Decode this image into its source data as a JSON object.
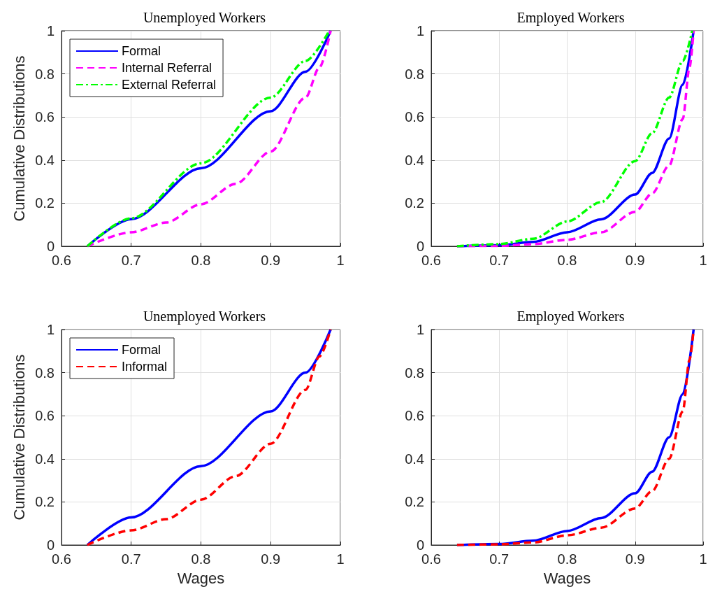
{
  "chart_data": [
    {
      "type": "line",
      "title": "Unemployed Workers",
      "ylabel": "Cumulative Distributions",
      "xlim": [
        0.6,
        1
      ],
      "xticks": [
        0.6,
        0.7,
        0.8,
        0.9,
        1
      ],
      "ylim": [
        0,
        1
      ],
      "yticks": [
        0,
        0.2,
        0.4,
        0.6,
        0.8,
        1
      ],
      "grid": true,
      "legend": "top left",
      "series": [
        {
          "name": "Formal",
          "color": "#0000ff",
          "line_style": "solid",
          "x": [
            0.637,
            0.7,
            0.8,
            0.9,
            0.95,
            0.986
          ],
          "values": [
            0,
            0.126,
            0.362,
            0.627,
            0.81,
            1
          ]
        },
        {
          "name": "Internal Referral",
          "color": "#ff00ff",
          "line_style": "dashed",
          "x": [
            0.637,
            0.7,
            0.75,
            0.8,
            0.85,
            0.9,
            0.95,
            0.97,
            0.986
          ],
          "values": [
            0,
            0.065,
            0.11,
            0.195,
            0.29,
            0.44,
            0.69,
            0.83,
            1
          ]
        },
        {
          "name": "External Referral",
          "color": "#00ff00",
          "line_style": "dashdot",
          "x": [
            0.637,
            0.7,
            0.8,
            0.9,
            0.95,
            0.984
          ],
          "values": [
            0,
            0.13,
            0.385,
            0.69,
            0.86,
            1
          ]
        }
      ]
    },
    {
      "type": "line",
      "title": "Employed Workers",
      "xlim": [
        0.6,
        1
      ],
      "xticks": [
        0.6,
        0.7,
        0.8,
        0.9,
        1
      ],
      "ylim": [
        0,
        1
      ],
      "yticks": [
        0,
        0.2,
        0.4,
        0.6,
        0.8,
        1
      ],
      "grid": true,
      "series": [
        {
          "color": "#0000ff",
          "line_style": "solid",
          "x": [
            0.638,
            0.7,
            0.75,
            0.8,
            0.85,
            0.9,
            0.925,
            0.95,
            0.97,
            0.986
          ],
          "values": [
            0,
            0.005,
            0.02,
            0.065,
            0.125,
            0.24,
            0.34,
            0.5,
            0.75,
            1
          ]
        },
        {
          "color": "#ff00ff",
          "line_style": "dashed",
          "x": [
            0.638,
            0.7,
            0.75,
            0.8,
            0.85,
            0.9,
            0.925,
            0.95,
            0.97,
            0.98,
            0.986
          ],
          "values": [
            0,
            0.002,
            0.01,
            0.03,
            0.065,
            0.16,
            0.245,
            0.375,
            0.59,
            0.83,
            1
          ]
        },
        {
          "color": "#00ff00",
          "line_style": "dashdot",
          "x": [
            0.638,
            0.7,
            0.75,
            0.8,
            0.85,
            0.9,
            0.925,
            0.95,
            0.97,
            0.984
          ],
          "values": [
            0,
            0.01,
            0.035,
            0.115,
            0.205,
            0.395,
            0.525,
            0.69,
            0.86,
            1
          ]
        }
      ]
    },
    {
      "type": "line",
      "title": "Unemployed Workers",
      "xlabel": "Wages",
      "ylabel": "Cumulative Distributions",
      "xlim": [
        0.6,
        1
      ],
      "xticks": [
        0.6,
        0.7,
        0.8,
        0.9,
        1
      ],
      "ylim": [
        0,
        1
      ],
      "yticks": [
        0,
        0.2,
        0.4,
        0.6,
        0.8,
        1
      ],
      "grid": true,
      "legend": "top left",
      "series": [
        {
          "name": "Formal",
          "color": "#0000ff",
          "line_style": "solid",
          "x": [
            0.637,
            0.7,
            0.8,
            0.9,
            0.95,
            0.986
          ],
          "values": [
            0,
            0.128,
            0.366,
            0.62,
            0.8,
            1
          ]
        },
        {
          "name": "Informal",
          "color": "#ff0000",
          "line_style": "dashed",
          "x": [
            0.637,
            0.7,
            0.75,
            0.8,
            0.85,
            0.9,
            0.95,
            0.97,
            0.986
          ],
          "values": [
            0,
            0.068,
            0.12,
            0.21,
            0.32,
            0.47,
            0.72,
            0.875,
            1
          ]
        }
      ]
    },
    {
      "type": "line",
      "title": "Employed Workers",
      "xlabel": "Wages",
      "xlim": [
        0.6,
        1
      ],
      "xticks": [
        0.6,
        0.7,
        0.8,
        0.9,
        1
      ],
      "ylim": [
        0,
        1
      ],
      "yticks": [
        0,
        0.2,
        0.4,
        0.6,
        0.8,
        1
      ],
      "grid": true,
      "series": [
        {
          "color": "#0000ff",
          "line_style": "solid",
          "x": [
            0.638,
            0.7,
            0.75,
            0.8,
            0.85,
            0.9,
            0.925,
            0.95,
            0.97,
            0.986
          ],
          "values": [
            0,
            0.005,
            0.02,
            0.065,
            0.125,
            0.24,
            0.34,
            0.5,
            0.7,
            1
          ]
        },
        {
          "color": "#ff0000",
          "line_style": "dashed",
          "x": [
            0.638,
            0.7,
            0.75,
            0.8,
            0.85,
            0.9,
            0.925,
            0.95,
            0.97,
            0.98,
            0.986
          ],
          "values": [
            0,
            0.003,
            0.012,
            0.045,
            0.08,
            0.17,
            0.25,
            0.4,
            0.62,
            0.86,
            1
          ]
        }
      ]
    }
  ]
}
